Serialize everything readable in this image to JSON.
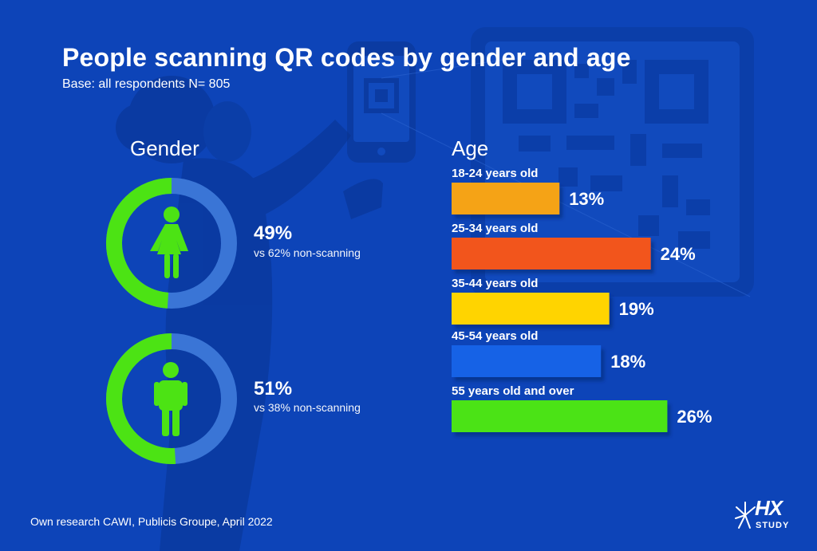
{
  "colors": {
    "background": "#0d44b8",
    "donut_highlight": "#4ce314",
    "donut_rest": "#3a75d6",
    "icon": "#4ce314",
    "text": "#ffffff"
  },
  "title": "People scanning QR codes by gender and age",
  "subtitle": "Base: all respondents N= 805",
  "gender_heading": "Gender",
  "age_heading": "Age",
  "source": "Own research CAWI, Publicis Groupe, April 2022",
  "logo": {
    "mark": "HX",
    "sub": "STUDY"
  },
  "icons": {
    "female": "female-person-icon",
    "male": "male-person-icon",
    "logo": "hx-study-logo"
  },
  "chart_data": [
    {
      "type": "pie",
      "subtype": "donut",
      "title": "Gender",
      "slices": [
        {
          "label": "Female",
          "value": 49,
          "value_label": "49%",
          "note": "vs 62% non-scanning",
          "color": "#4ce314"
        },
        {
          "label": "Male",
          "value": 51,
          "value_label": "51%",
          "note": "vs 38% non-scanning",
          "color": "#4ce314"
        }
      ]
    },
    {
      "type": "bar",
      "orientation": "horizontal",
      "title": "Age",
      "categories": [
        "18-24 years old",
        "25-34 years old",
        "35-44 years old",
        "45-54 years old",
        "55 years old and over"
      ],
      "values": [
        13,
        24,
        19,
        18,
        26
      ],
      "value_labels": [
        "13%",
        "24%",
        "19%",
        "18%",
        "26%"
      ],
      "colors": [
        "#f5a316",
        "#f2551f",
        "#ffd400",
        "#1462e6",
        "#4ce314"
      ],
      "unit": "%"
    }
  ]
}
